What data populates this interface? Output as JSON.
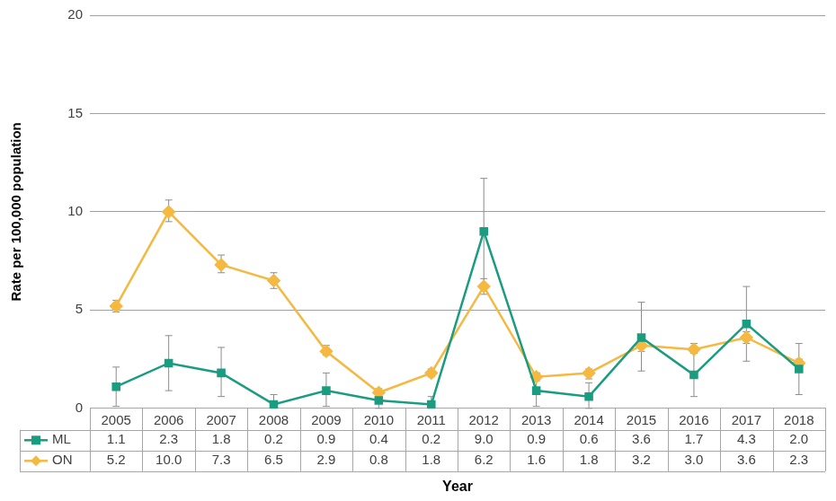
{
  "chart_data": {
    "type": "line",
    "x_label": "Year",
    "y_label": "Rate per 100,000 population",
    "categories": [
      "2005",
      "2006",
      "2007",
      "2008",
      "2009",
      "2010",
      "2011",
      "2012",
      "2013",
      "2014",
      "2015",
      "2016",
      "2017",
      "2018"
    ],
    "ylim": [
      0,
      20
    ],
    "yticks": [
      0,
      5,
      10,
      15,
      20
    ],
    "grid": true,
    "series": [
      {
        "name": "ML",
        "color": "#1a9c80",
        "marker": "square",
        "line_style": "solid",
        "values": [
          1.1,
          2.3,
          1.8,
          0.2,
          0.9,
          0.4,
          0.2,
          9.0,
          0.9,
          0.6,
          3.6,
          1.7,
          4.3,
          2.0
        ],
        "value_labels": [
          "1.1",
          "2.3",
          "1.8",
          "0.2",
          "0.9",
          "0.4",
          "0.2",
          "9.0",
          "0.9",
          "0.6",
          "3.6",
          "1.7",
          "4.3",
          "2.0"
        ],
        "error_low": [
          0.1,
          0.9,
          0.6,
          0.0,
          0.1,
          0.0,
          0.0,
          6.3,
          0.1,
          0.0,
          1.9,
          0.6,
          2.4,
          0.7
        ],
        "error_high": [
          2.1,
          3.7,
          3.1,
          0.7,
          1.8,
          0.9,
          0.6,
          11.7,
          1.8,
          1.3,
          5.4,
          2.8,
          6.2,
          3.3
        ]
      },
      {
        "name": "ON",
        "color": "#f5b942",
        "marker": "diamond",
        "line_style": "solid",
        "values": [
          5.2,
          10.0,
          7.3,
          6.5,
          2.9,
          0.8,
          1.8,
          6.2,
          1.6,
          1.8,
          3.2,
          3.0,
          3.6,
          2.3
        ],
        "value_labels": [
          "5.2",
          "10.0",
          "7.3",
          "6.5",
          "2.9",
          "0.8",
          "1.8",
          "6.2",
          "1.6",
          "1.8",
          "3.2",
          "3.0",
          "3.6",
          "2.3"
        ],
        "error_low": [
          4.9,
          9.5,
          6.9,
          6.1,
          2.7,
          0.6,
          1.6,
          5.8,
          1.4,
          1.5,
          2.9,
          2.8,
          3.3,
          2.0
        ],
        "error_high": [
          5.5,
          10.6,
          7.8,
          6.9,
          3.2,
          1.0,
          2.0,
          6.6,
          1.8,
          2.0,
          3.4,
          3.3,
          3.9,
          2.5
        ]
      }
    ]
  }
}
